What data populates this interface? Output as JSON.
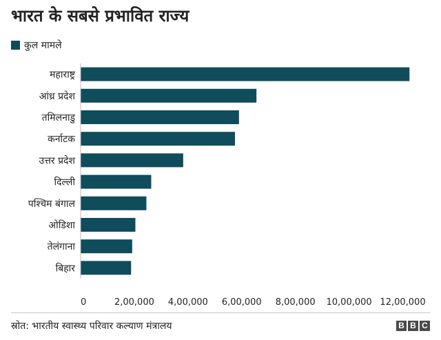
{
  "title": "भारत के सबसे प्रभावित राज्य",
  "source": "स्रोत: भारतीय स्वास्थ्य परिवार कल्याण मंत्रालय",
  "logo": [
    "B",
    "B",
    "C"
  ],
  "colors": {
    "bar": "#0f4c5c",
    "text": "#222222"
  },
  "chart_data": {
    "type": "bar",
    "orientation": "horizontal",
    "legend": [
      "कुल मामले"
    ],
    "categories": [
      "महाराष्ट्र",
      "आंध्र प्रदेश",
      "तमिलनाडु",
      "कर्नाटक",
      "उत्तर प्रदेश",
      "दिल्ली",
      "पश्चिम बंगाल",
      "ओडिशा",
      "तेलंगाना",
      "बिहार"
    ],
    "values": [
      1225000,
      655000,
      590000,
      575000,
      382000,
      263000,
      245000,
      204000,
      192000,
      188000
    ],
    "xlim": [
      0,
      1250000
    ],
    "xticks": [
      0,
      200000,
      400000,
      600000,
      800000,
      1000000,
      1200000
    ],
    "xtick_labels": [
      "0",
      "2,00,000",
      "4,00,000",
      "6,00,000",
      "8,00,000",
      "10,00,000",
      "12,00,000"
    ],
    "grid": false,
    "legend_position": "top-left"
  }
}
